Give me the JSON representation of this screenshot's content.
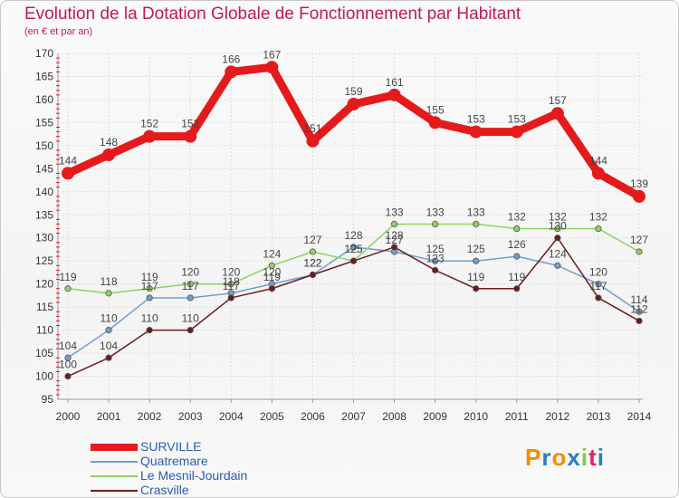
{
  "header": {
    "title": "Evolution de la Dotation Globale de Fonctionnement par Habitant",
    "subtitle": "(en € et par an)"
  },
  "logo": {
    "text": "Proxiti"
  },
  "colors": {
    "SURVILLE": "#e41a1c",
    "Quatremare": "#6e9fcf",
    "Le Mesnil-Jourdain": "#8cd35f",
    "Crasville": "#6b1c1c"
  },
  "chart_data": {
    "type": "line",
    "title": "Evolution de la Dotation Globale de Fonctionnement par Habitant",
    "subtitle": "(en € et par an)",
    "xlabel": "",
    "ylabel": "",
    "ylim": [
      95,
      170
    ],
    "yticks": [
      95,
      100,
      105,
      110,
      115,
      120,
      125,
      130,
      135,
      140,
      145,
      150,
      155,
      160,
      165,
      170
    ],
    "grid": true,
    "legend_position": "bottom-left",
    "x": [
      "2000",
      "2001",
      "2002",
      "2003",
      "2004",
      "2005",
      "2006",
      "2007",
      "2008",
      "2009",
      "2010",
      "2011",
      "2012",
      "2013",
      "2014"
    ],
    "series": [
      {
        "name": "SURVILLE",
        "values": [
          144,
          148,
          152,
          152,
          166,
          167,
          151,
          159,
          161,
          155,
          153,
          153,
          157,
          144,
          139
        ]
      },
      {
        "name": "Quatremare",
        "values": [
          104,
          110,
          117,
          117,
          118,
          120,
          122,
          128,
          127,
          125,
          125,
          126,
          124,
          120,
          114
        ]
      },
      {
        "name": "Le Mesnil-Jourdain",
        "values": [
          119,
          118,
          119,
          120,
          120,
          124,
          127,
          125,
          133,
          133,
          133,
          132,
          132,
          132,
          127
        ]
      },
      {
        "name": "Crasville",
        "values": [
          100,
          104,
          110,
          110,
          117,
          119,
          122,
          125,
          128,
          123,
          119,
          119,
          130,
          117,
          112
        ]
      }
    ]
  }
}
